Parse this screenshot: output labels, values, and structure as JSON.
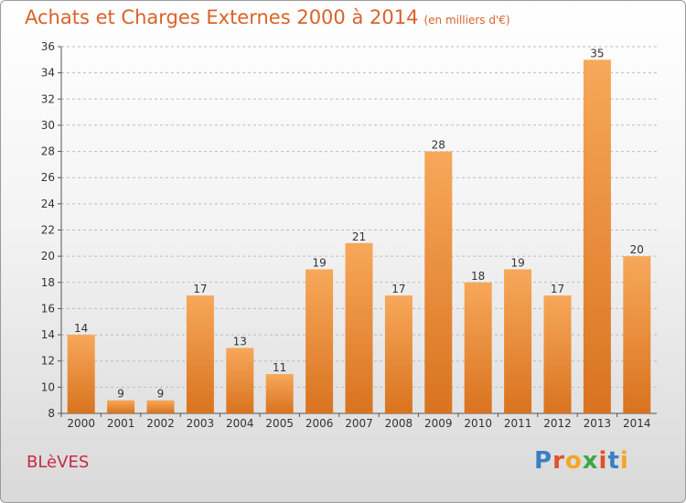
{
  "header": {
    "title": "Achats et Charges Externes 2000 à 2014",
    "unit": "(en milliers d'€)"
  },
  "footer": {
    "place": "BLèVES",
    "logo_letters": [
      "P",
      "r",
      "o",
      "x",
      "i",
      "t",
      "i"
    ],
    "logo_colors": [
      "#3a7fc4",
      "#e0512b",
      "#f5a623",
      "#3aa84a",
      "#e0512b",
      "#3a7fc4",
      "#f5a623"
    ]
  },
  "colors": {
    "bar_light": "#f7a85a",
    "bar_dark": "#d9731f",
    "title": "#d9622a",
    "place": "#c52b46"
  },
  "chart_data": {
    "type": "bar",
    "categories": [
      "2000",
      "2001",
      "2002",
      "2003",
      "2004",
      "2005",
      "2006",
      "2007",
      "2008",
      "2009",
      "2010",
      "2011",
      "2012",
      "2013",
      "2014"
    ],
    "values": [
      14,
      9,
      9,
      17,
      13,
      11,
      19,
      21,
      17,
      28,
      18,
      19,
      17,
      35,
      20
    ],
    "title": "Achats et Charges Externes 2000 à 2014",
    "xlabel": "",
    "ylabel": "",
    "ylim": [
      8,
      36
    ],
    "yticks": [
      8,
      10,
      12,
      14,
      16,
      18,
      20,
      22,
      24,
      26,
      28,
      30,
      32,
      34,
      36
    ],
    "grid": true,
    "data_labels": true
  }
}
